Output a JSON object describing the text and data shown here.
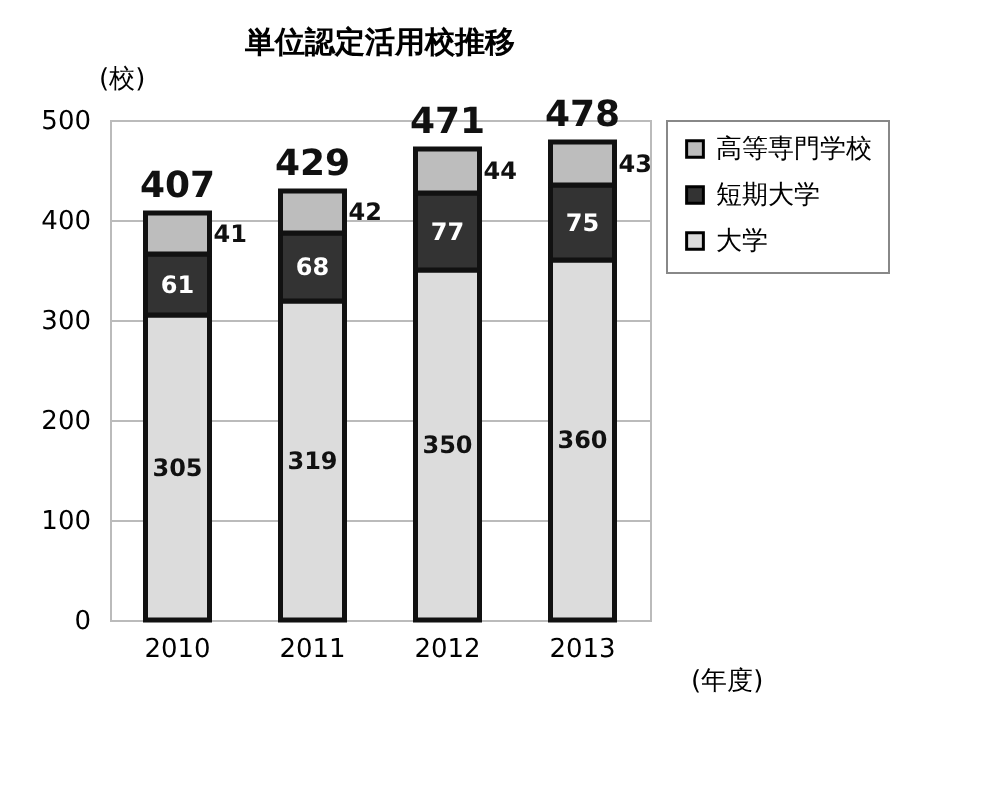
{
  "chart_data": {
    "type": "bar",
    "title": "単位認定活用校推移",
    "xlabel": "(年度)",
    "ylabel": "(校)",
    "categories": [
      "2010",
      "2011",
      "2012",
      "2013"
    ],
    "stacked": true,
    "series": [
      {
        "name": "大学",
        "color": "#dcdcdc",
        "values": [
          305,
          319,
          350,
          360
        ]
      },
      {
        "name": "短期大学",
        "color": "#333333",
        "values": [
          61,
          68,
          77,
          75
        ]
      },
      {
        "name": "高等専門学校",
        "color": "#bdbdbd",
        "values": [
          41,
          42,
          44,
          43
        ]
      }
    ],
    "totals": [
      "407",
      "429",
      "471",
      "478"
    ],
    "data_labels": true,
    "ylim": [
      0,
      500
    ],
    "yticks": [
      0,
      100,
      200,
      300,
      400,
      500
    ],
    "grid": "y",
    "legend": "right"
  }
}
